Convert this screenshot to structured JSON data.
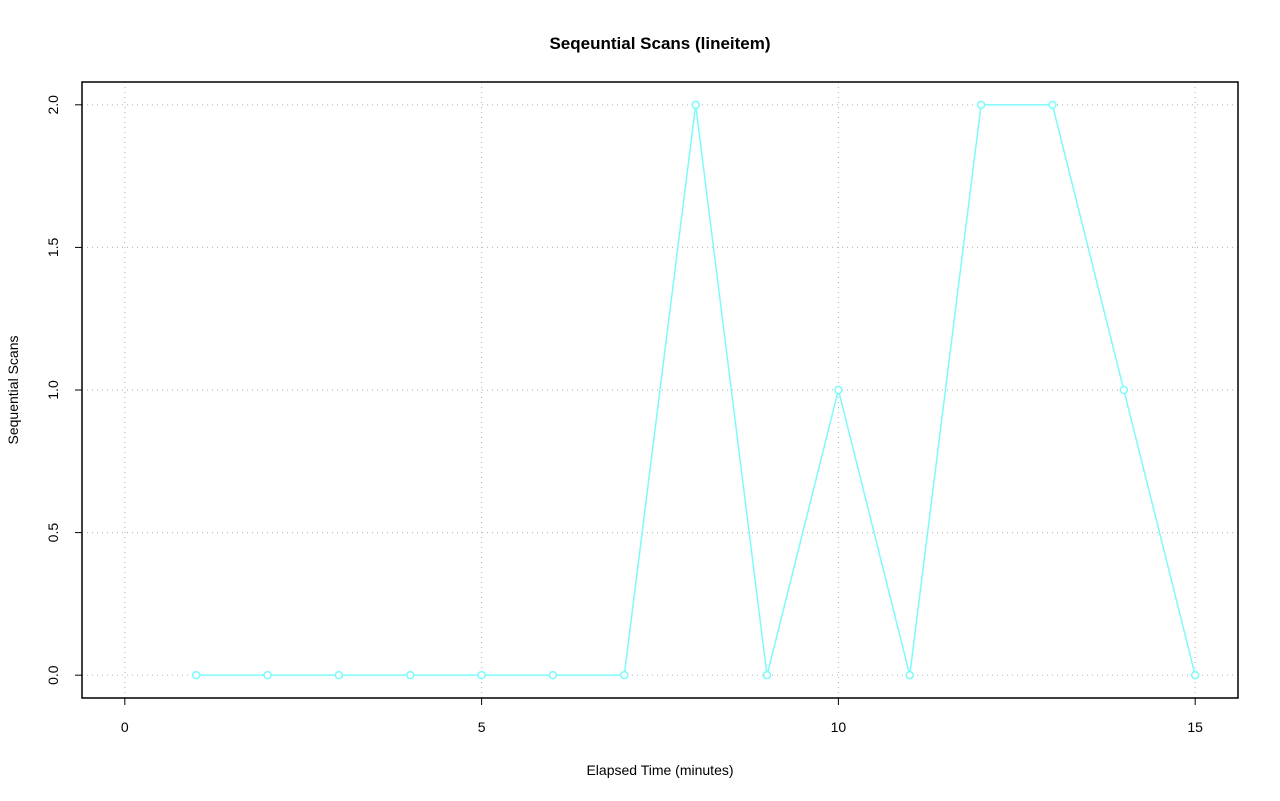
{
  "chart_data": {
    "type": "line",
    "title": "Seqeuntial Scans (lineitem)",
    "xlabel": "Elapsed Time (minutes)",
    "ylabel": "Sequential Scans",
    "x": [
      1,
      2,
      3,
      4,
      5,
      6,
      7,
      8,
      9,
      10,
      11,
      12,
      13,
      14,
      15
    ],
    "series": [
      {
        "name": null,
        "color": "#7ffafa",
        "values": [
          0,
          0,
          0,
          0,
          0,
          0,
          0,
          2,
          0,
          1,
          0,
          2,
          2,
          1,
          0
        ]
      }
    ],
    "xlim": [
      -0.6,
      15.6
    ],
    "ylim": [
      -0.08,
      2.08
    ],
    "xticks": [
      0,
      5,
      10,
      15
    ],
    "yticks": [
      {
        "value": 0,
        "label": "0.0"
      },
      {
        "value": 0.5,
        "label": "0.5"
      },
      {
        "value": 1,
        "label": "1.0"
      },
      {
        "value": 1.5,
        "label": "1.5"
      },
      {
        "value": 2,
        "label": "2.0"
      }
    ],
    "grid": true
  }
}
